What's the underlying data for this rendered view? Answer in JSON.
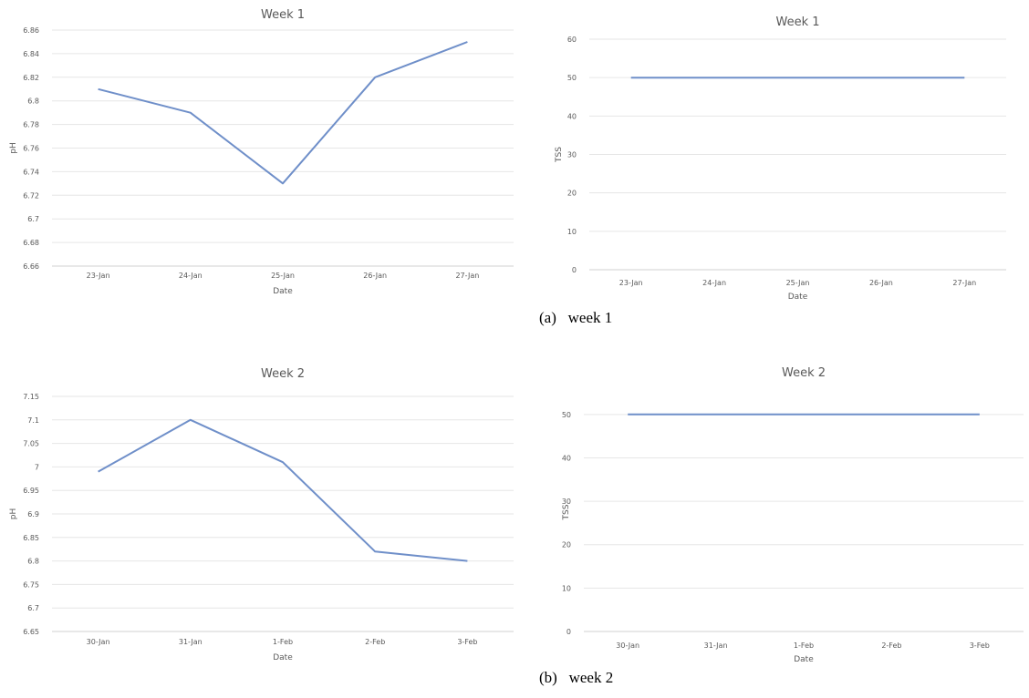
{
  "captions": [
    "(a)   week 1",
    "(b)   week 2"
  ],
  "chart_data": [
    {
      "type": "line",
      "title": "Week 1",
      "xlabel": "Date",
      "ylabel": "pH",
      "categories": [
        "23-Jan",
        "24-Jan",
        "25-Jan",
        "26-Jan",
        "27-Jan"
      ],
      "series": [
        {
          "values": [
            6.81,
            6.79,
            6.73,
            6.82,
            6.85
          ],
          "color": "#6f8fc9"
        }
      ],
      "ylim": [
        6.66,
        6.86
      ],
      "yticks": [
        "6.66",
        "6.68",
        "6.7",
        "6.72",
        "6.74",
        "6.76",
        "6.78",
        "6.8",
        "6.82",
        "6.84",
        "6.86"
      ],
      "grid": true
    },
    {
      "type": "line",
      "title": "Week 1",
      "xlabel": "Date",
      "ylabel": "TSS",
      "categories": [
        "23-Jan",
        "24-Jan",
        "25-Jan",
        "26-Jan",
        "27-Jan"
      ],
      "series": [
        {
          "values": [
            50,
            50,
            50,
            50,
            50
          ],
          "color": "#6f8fc9"
        }
      ],
      "ylim": [
        0,
        60
      ],
      "yticks": [
        "0",
        "10",
        "20",
        "30",
        "40",
        "50",
        "60"
      ],
      "grid": true
    },
    {
      "type": "line",
      "title": "Week 2",
      "xlabel": "Date",
      "ylabel": "pH",
      "categories": [
        "30-Jan",
        "31-Jan",
        "1-Feb",
        "2-Feb",
        "3-Feb"
      ],
      "series": [
        {
          "values": [
            6.99,
            7.1,
            7.01,
            6.82,
            6.8
          ],
          "color": "#6f8fc9"
        }
      ],
      "ylim": [
        6.65,
        7.15
      ],
      "yticks": [
        "6.65",
        "6.7",
        "6.75",
        "6.8",
        "6.85",
        "6.9",
        "6.95",
        "7",
        "7.05",
        "7.1",
        "7.15"
      ],
      "grid": true
    },
    {
      "type": "line",
      "title": "Week 2",
      "xlabel": "Date",
      "ylabel": "TSS",
      "categories": [
        "30-Jan",
        "31-Jan",
        "1-Feb",
        "2-Feb",
        "3-Feb"
      ],
      "series": [
        {
          "values": [
            50,
            50,
            50,
            50,
            50
          ],
          "color": "#6f8fc9"
        }
      ],
      "ylim": [
        0,
        55
      ],
      "yticks": [
        "0",
        "10",
        "20",
        "30",
        "40",
        "50"
      ],
      "grid": true
    }
  ]
}
